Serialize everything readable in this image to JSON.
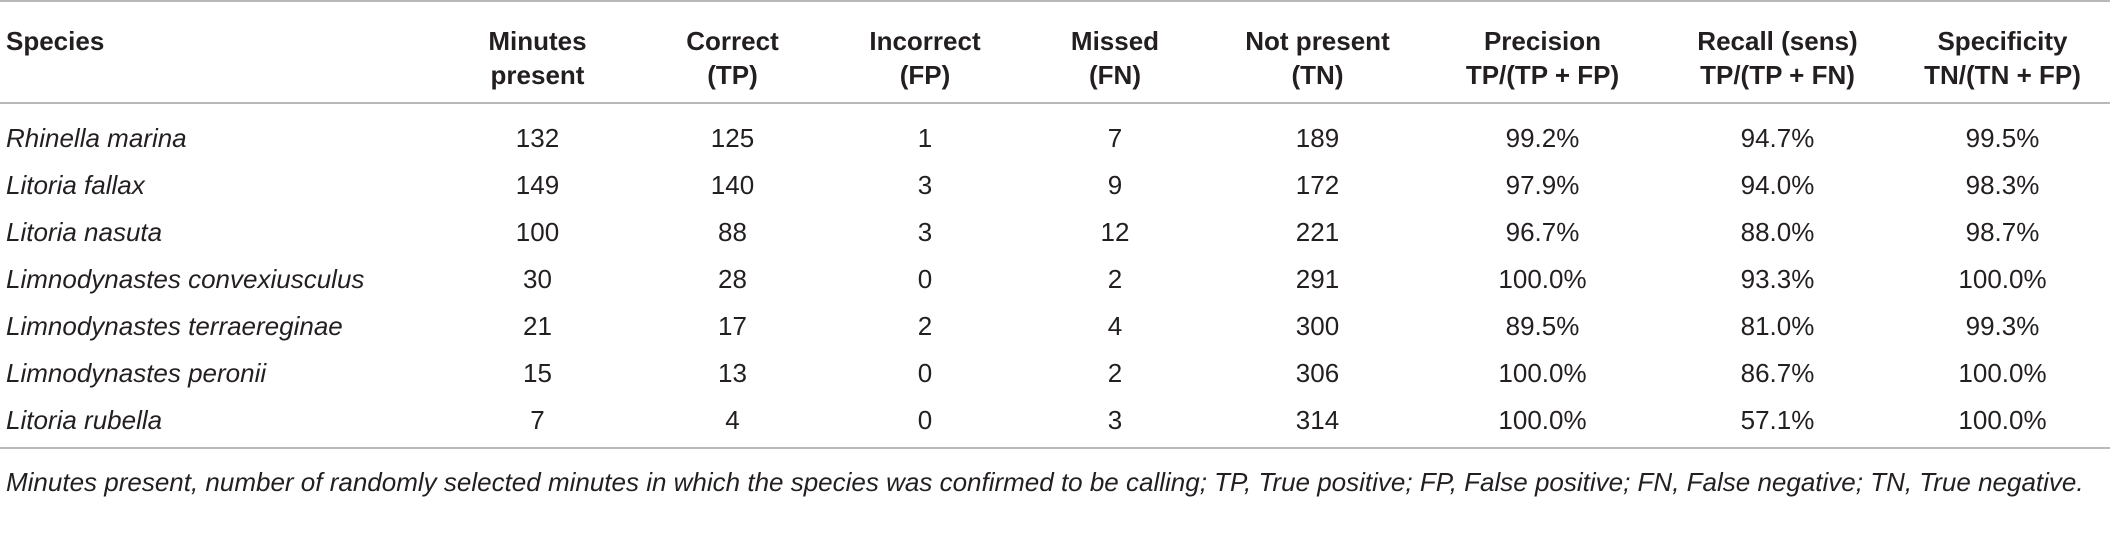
{
  "table": {
    "headers": [
      [
        "Species"
      ],
      [
        "Minutes",
        "present"
      ],
      [
        "Correct",
        "(TP)"
      ],
      [
        "Incorrect",
        "(FP)"
      ],
      [
        "Missed",
        "(FN)"
      ],
      [
        "Not present",
        "(TN)"
      ],
      [
        "Precision",
        "TP/(TP + FP)"
      ],
      [
        "Recall (sens)",
        "TP/(TP + FN)"
      ],
      [
        "Specificity",
        "TN/(TN + FP)"
      ]
    ],
    "rows": [
      [
        "Rhinella marina",
        "132",
        "125",
        "1",
        "7",
        "189",
        "99.2%",
        "94.7%",
        "99.5%"
      ],
      [
        "Litoria fallax",
        "149",
        "140",
        "3",
        "9",
        "172",
        "97.9%",
        "94.0%",
        "98.3%"
      ],
      [
        "Litoria nasuta",
        "100",
        "88",
        "3",
        "12",
        "221",
        "96.7%",
        "88.0%",
        "98.7%"
      ],
      [
        "Limnodynastes convexiusculus",
        "30",
        "28",
        "0",
        "2",
        "291",
        "100.0%",
        "93.3%",
        "100.0%"
      ],
      [
        "Limnodynastes terraereginae",
        "21",
        "17",
        "2",
        "4",
        "300",
        "89.5%",
        "81.0%",
        "99.3%"
      ],
      [
        "Limnodynastes peronii",
        "15",
        "13",
        "0",
        "2",
        "306",
        "100.0%",
        "86.7%",
        "100.0%"
      ],
      [
        "Litoria rubella",
        "7",
        "4",
        "0",
        "3",
        "314",
        "100.0%",
        "57.1%",
        "100.0%"
      ]
    ]
  },
  "footnote": "Minutes present, number of randomly selected minutes in which the species was confirmed to be calling; TP, True positive; FP, False positive; FN, False negative; TN, True negative."
}
